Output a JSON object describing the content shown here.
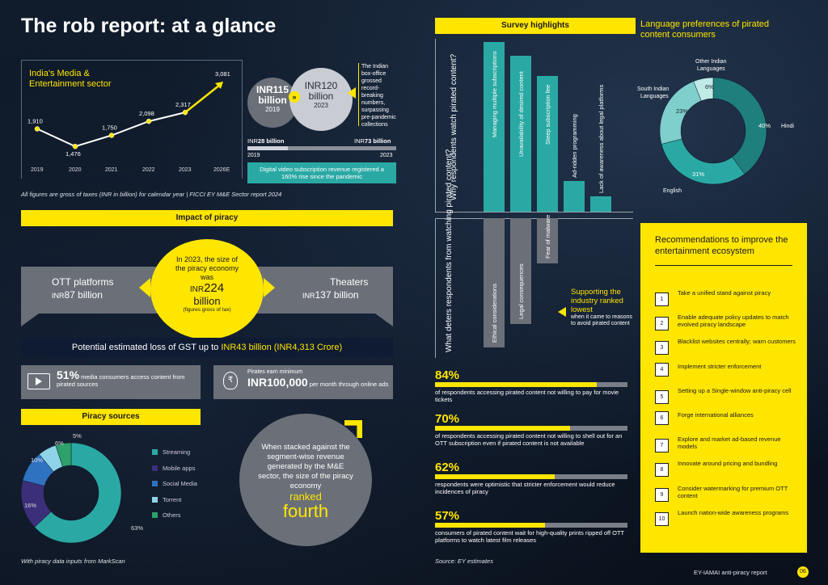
{
  "page_title": "The rob report: at a glance",
  "media_sector": {
    "heading": "India's Media & Entertainment sector",
    "years": [
      "2019",
      "2020",
      "2021",
      "2022",
      "2023",
      "2026E"
    ],
    "values": [
      1910,
      1476,
      1750,
      2098,
      2317,
      3081
    ],
    "value_labels": [
      "1,910",
      "1,476",
      "1,750",
      "2,098",
      "2,317",
      "3,081"
    ],
    "footnote": "All figures are gross of taxes (INR in billion) for calendar year | FICCI EY M&E Sector report 2024"
  },
  "box_office": {
    "left_prefix": "INR",
    "left_value": "115",
    "left_unit": "billion",
    "left_year": "2019",
    "right_prefix": "INR",
    "right_value": "120",
    "right_unit": "billion",
    "right_year": "2023",
    "caption": "The Indian box-office grossed record-breaking numbers, surpassing pre-pandemic collections"
  },
  "digital_video": {
    "left_prefix": "INR",
    "left_value": "28 billion",
    "left_year": "2019",
    "right_prefix": "INR",
    "right_value": "73 billion",
    "right_year": "2023",
    "caption": "Digital video subscription revenue registered a 160% rise since the pandemic"
  },
  "impact": {
    "heading": "Impact of piracy",
    "ott_label": "OTT platforms",
    "ott_prefix": "INR",
    "ott_value": "87 billion",
    "center_text": "In 2023, the size of the piracy economy was",
    "center_prefix": "INR",
    "center_value": "224",
    "center_unit": "billion",
    "center_note": "(figures gross of tax)",
    "theater_label": "Theaters",
    "theater_prefix": "INR",
    "theater_value": "137 billion",
    "gst_text": "Potential estimated loss of GST up to ",
    "gst_value": "INR43 billion (INR4,313 Crore)",
    "stat1_big": "51%",
    "stat1_text": "media consumers access content from pirated sources",
    "stat2_pre": "Pirates earn minimum",
    "stat2_big": "INR100,000",
    "stat2_text": "per month through online ads"
  },
  "piracy_sources": {
    "heading": "Piracy sources",
    "labels": [
      "Streaming",
      "Mobile apps",
      "Social Media",
      "Torrent",
      "Others"
    ],
    "values": [
      63,
      16,
      10,
      6,
      5
    ],
    "value_labels": [
      "63%",
      "16%",
      "10%",
      "6%",
      "5%"
    ],
    "colors": [
      "#2aa9a4",
      "#3c2f7a",
      "#2f72c0",
      "#8fd3e8",
      "#2ea06a"
    ],
    "footnote": "With piracy data inputs from MarkScan"
  },
  "fourth_callout": {
    "text": "When stacked against the segment-wise revenue generated by the M&E sector, the size of the piracy economy",
    "highlight1": "ranked",
    "highlight2": "fourth"
  },
  "survey": {
    "heading": "Survey highlights",
    "why_question": "Why respondents watch pirated content?",
    "why_bars": [
      {
        "label": "Managing multiple subscriptions",
        "value": 100
      },
      {
        "label": "Unavailability of desired content",
        "value": 92
      },
      {
        "label": "Steep subscription fee",
        "value": 80
      },
      {
        "label": "Ad-ridden programming",
        "value": 18
      },
      {
        "label": "Lack of awareness about legal platforms",
        "value": 9
      }
    ],
    "deter_question": "What deters respondents from watching pirated content?",
    "deter_bars": [
      {
        "label": "Ethical considerations",
        "value": 100
      },
      {
        "label": "Legal consequences",
        "value": 82
      },
      {
        "label": "Fear of malware",
        "value": 35
      }
    ],
    "callout_head": "Supporting the industry ranked lowest",
    "callout_text": "when it came to reasons to avoid pirated content",
    "stats": [
      {
        "pct": "84%",
        "fill": 84,
        "text": "of respondents accessing pirated content not willing to pay for movie tickets"
      },
      {
        "pct": "70%",
        "fill": 70,
        "text": "of respondents accessing pirated content not willing to shell out for an OTT subscription even if pirated content is not available"
      },
      {
        "pct": "62%",
        "fill": 62,
        "text": "respondents were optimistic that stricter enforcement would reduce incidences of piracy"
      },
      {
        "pct": "57%",
        "fill": 57,
        "text": "consumers of pirated content wait for high-quality prints ripped off OTT platforms to watch latest film releases"
      }
    ],
    "source": "Source: EY estimates"
  },
  "language": {
    "heading": "Language preferences of pirated content consumers",
    "labels": [
      "Hindi",
      "English",
      "South Indian Languages",
      "Other Indian Languages"
    ],
    "values": [
      40,
      31,
      23,
      6
    ],
    "value_labels": [
      "40%",
      "31%",
      "23%",
      "6%"
    ],
    "colors": [
      "#1f7f7c",
      "#2aa9a4",
      "#7fcfcc",
      "#bfeae6"
    ]
  },
  "recommendations": {
    "heading": "Recommendations to improve the entertainment ecosystem",
    "items": [
      {
        "num": "1",
        "text": "Take a unified stand against piracy"
      },
      {
        "num": "2",
        "text": "Enable adequate policy updates to match evolved piracy landscape"
      },
      {
        "num": "3",
        "text": "Blacklist websites centrally; warn customers"
      },
      {
        "num": "4",
        "text": "Implement stricter enforcement"
      },
      {
        "num": "5",
        "text": "Setting up a Single-window anti-piracy cell"
      },
      {
        "num": "6",
        "text": "Forge international alliances"
      },
      {
        "num": "7",
        "text": "Explore and market ad-based revenue models"
      },
      {
        "num": "8",
        "text": "Innovate around pricing and bundling"
      },
      {
        "num": "9",
        "text": "Consider watermarking for premium OTT content"
      },
      {
        "num": "10",
        "text": "Launch nation-wide awareness programs"
      }
    ]
  },
  "footer": {
    "report": "EY-IAMAI anti-piracy report",
    "page": "06"
  }
}
